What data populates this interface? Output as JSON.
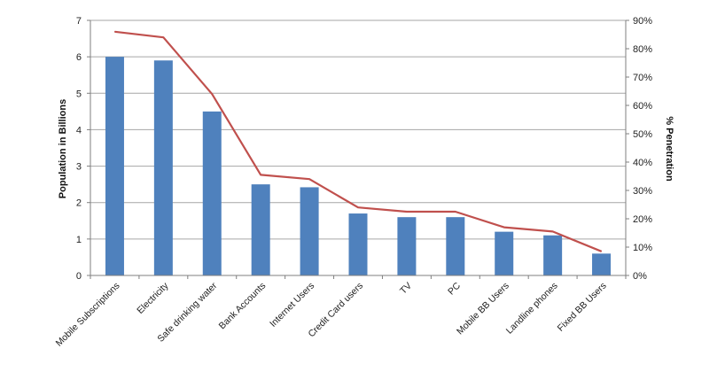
{
  "chart_data": {
    "type": "bar",
    "categories": [
      "Mobile Subscriptions",
      "Electricity",
      "Safe drinking water",
      "Bank Accounts",
      "Internet Users",
      "Credit Card users",
      "TV",
      "PC",
      "Mobile BB Users",
      "Landline phones",
      "Fixed BB Users"
    ],
    "series": [
      {
        "type": "bar",
        "axis": "left",
        "values": [
          6.0,
          5.9,
          4.5,
          2.5,
          2.42,
          1.7,
          1.6,
          1.6,
          1.2,
          1.1,
          0.6
        ]
      },
      {
        "type": "line",
        "axis": "right",
        "values": [
          86,
          84,
          64,
          35.5,
          34,
          24,
          22.5,
          22.5,
          17,
          15.5,
          8.5
        ]
      }
    ],
    "ylabel": "Population in Billions",
    "y2label": "% Penetration",
    "ylim": [
      0,
      7
    ],
    "y2lim": [
      0,
      90
    ],
    "yticks": [
      "0",
      "1",
      "2",
      "3",
      "4",
      "5",
      "6",
      "7"
    ],
    "y2ticks": [
      "0%",
      "10%",
      "20%",
      "30%",
      "40%",
      "50%",
      "60%",
      "70%",
      "80%",
      "90%"
    ],
    "grid": true,
    "legend": "none",
    "colors": {
      "bar": "#4f81bd",
      "line": "#c0504d",
      "grid": "#a6a6a6",
      "axis": "#7f7f7f"
    }
  }
}
